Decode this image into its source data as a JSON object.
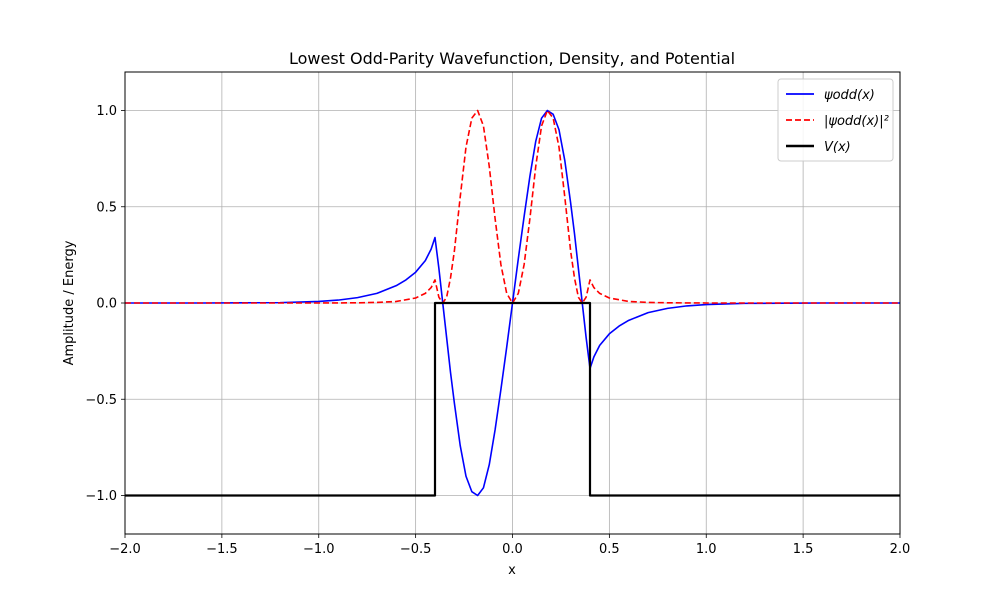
{
  "chart_data": {
    "type": "line",
    "title": "Lowest Odd-Parity Wavefunction, Density, and Potential",
    "xlabel": "x",
    "ylabel": "Amplitude / Energy",
    "xlim": [
      -2.0,
      2.0
    ],
    "ylim": [
      -1.2,
      1.2
    ],
    "xticks": [
      "−2.0",
      "−1.5",
      "−1.0",
      "−0.5",
      "0.0",
      "0.5",
      "1.0",
      "1.5",
      "2.0"
    ],
    "xtick_values": [
      -2.0,
      -1.5,
      -1.0,
      -0.5,
      0.0,
      0.5,
      1.0,
      1.5,
      2.0
    ],
    "yticks": [
      "−1.0",
      "−0.5",
      "0.0",
      "0.5",
      "1.0"
    ],
    "ytick_values": [
      -1.0,
      -0.5,
      0.0,
      0.5,
      1.0
    ],
    "grid": true,
    "legend_position": "top-right",
    "series": [
      {
        "name": "ψodd(x)",
        "color": "#0000ff",
        "style": "solid",
        "x": [
          -2.0,
          -1.8,
          -1.6,
          -1.4,
          -1.2,
          -1.0,
          -0.9,
          -0.8,
          -0.7,
          -0.6,
          -0.55,
          -0.5,
          -0.45,
          -0.42,
          -0.4,
          -0.38,
          -0.36,
          -0.34,
          -0.32,
          -0.3,
          -0.27,
          -0.24,
          -0.21,
          -0.18,
          -0.15,
          -0.12,
          -0.09,
          -0.06,
          -0.03,
          0.0,
          0.03,
          0.06,
          0.09,
          0.12,
          0.15,
          0.18,
          0.21,
          0.24,
          0.27,
          0.3,
          0.32,
          0.34,
          0.36,
          0.38,
          0.4,
          0.42,
          0.45,
          0.5,
          0.55,
          0.6,
          0.7,
          0.8,
          0.9,
          1.0,
          1.2,
          1.4,
          1.6,
          1.8,
          2.0
        ],
        "y": [
          0.0,
          0.0,
          0.0,
          0.001,
          0.002,
          0.008,
          0.015,
          0.028,
          0.05,
          0.09,
          0.12,
          0.16,
          0.22,
          0.28,
          0.34,
          0.18,
          0.0,
          -0.18,
          -0.36,
          -0.52,
          -0.74,
          -0.9,
          -0.98,
          -1.0,
          -0.96,
          -0.84,
          -0.66,
          -0.45,
          -0.23,
          0.0,
          0.23,
          0.45,
          0.66,
          0.84,
          0.96,
          1.0,
          0.98,
          0.9,
          0.74,
          0.52,
          0.36,
          0.18,
          0.0,
          -0.18,
          -0.34,
          -0.28,
          -0.22,
          -0.16,
          -0.12,
          -0.09,
          -0.05,
          -0.028,
          -0.015,
          -0.008,
          -0.002,
          -0.001,
          0.0,
          0.0,
          0.0
        ]
      },
      {
        "name": "|ψodd(x)|²",
        "color": "#ff0000",
        "style": "dashed",
        "x": [
          -2.0,
          -1.6,
          -1.2,
          -1.0,
          -0.8,
          -0.7,
          -0.6,
          -0.5,
          -0.45,
          -0.42,
          -0.4,
          -0.38,
          -0.36,
          -0.34,
          -0.32,
          -0.3,
          -0.27,
          -0.24,
          -0.21,
          -0.18,
          -0.15,
          -0.12,
          -0.09,
          -0.06,
          -0.03,
          0.0,
          0.03,
          0.06,
          0.09,
          0.12,
          0.15,
          0.18,
          0.21,
          0.24,
          0.27,
          0.3,
          0.32,
          0.34,
          0.36,
          0.38,
          0.4,
          0.42,
          0.45,
          0.5,
          0.6,
          0.7,
          0.8,
          1.0,
          1.2,
          1.6,
          2.0
        ],
        "y": [
          0.0,
          0.0,
          0.0,
          0.0,
          0.001,
          0.003,
          0.008,
          0.026,
          0.05,
          0.08,
          0.12,
          0.03,
          0.0,
          0.03,
          0.13,
          0.27,
          0.55,
          0.81,
          0.96,
          1.0,
          0.92,
          0.71,
          0.44,
          0.2,
          0.05,
          0.0,
          0.05,
          0.2,
          0.44,
          0.71,
          0.92,
          1.0,
          0.96,
          0.81,
          0.55,
          0.27,
          0.13,
          0.03,
          0.0,
          0.03,
          0.12,
          0.08,
          0.05,
          0.026,
          0.008,
          0.003,
          0.001,
          0.0,
          0.0,
          0.0,
          0.0
        ]
      },
      {
        "name": "V(x)",
        "color": "#000000",
        "style": "solid",
        "x": [
          -2.0,
          -0.4,
          -0.4,
          0.4,
          0.4,
          2.0
        ],
        "y": [
          -1.0,
          -1.0,
          0.0,
          0.0,
          -1.0,
          -1.0
        ]
      }
    ]
  }
}
